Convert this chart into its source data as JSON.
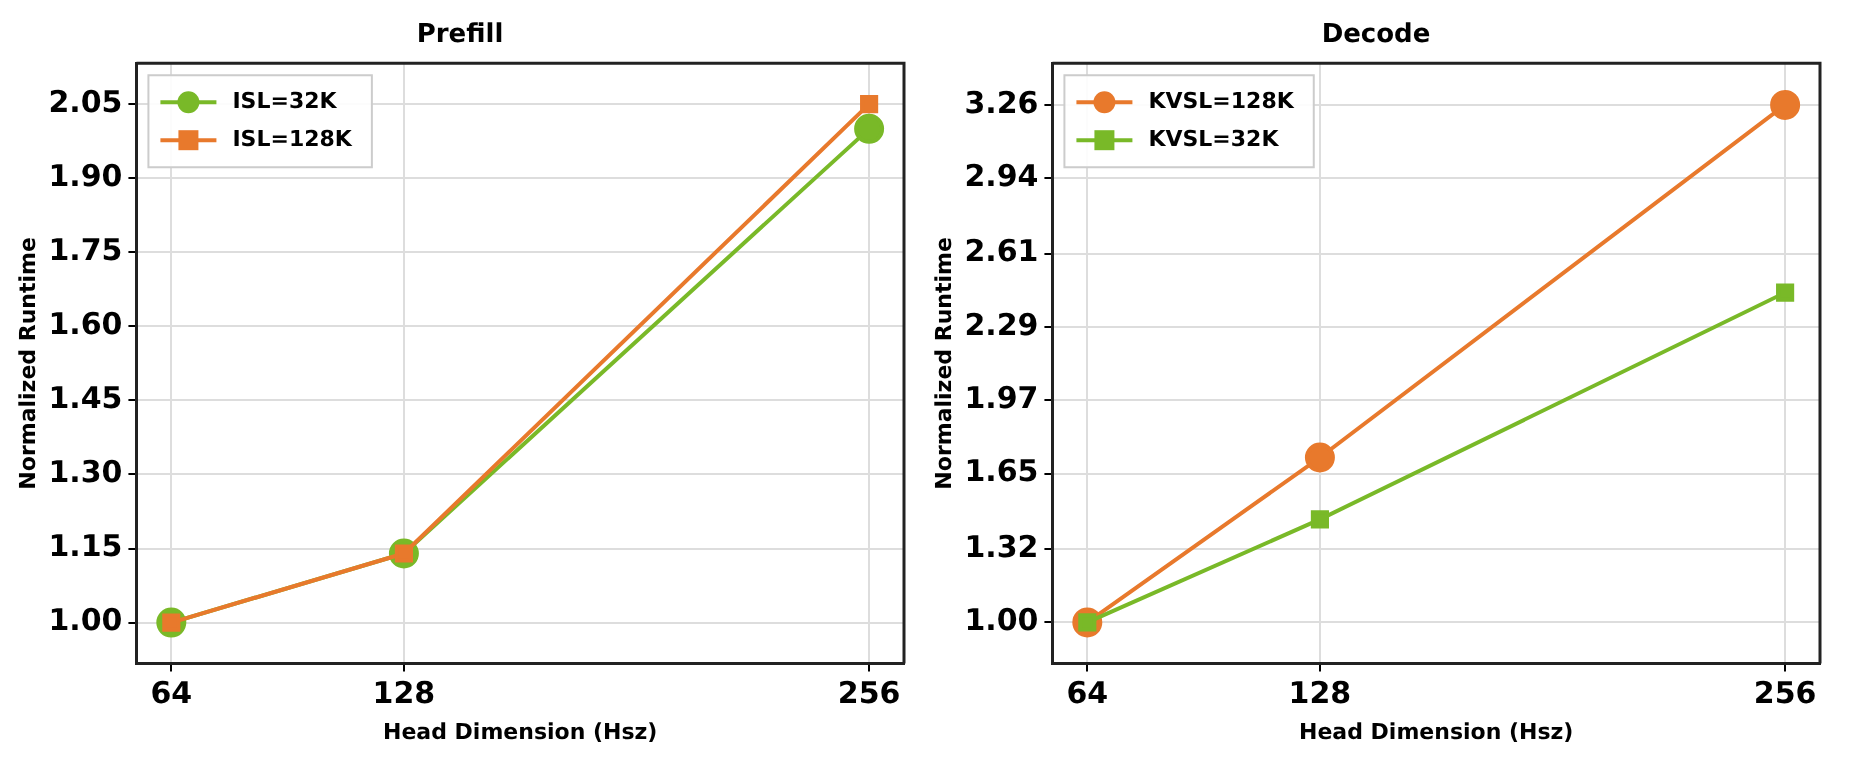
{
  "chart_data": [
    {
      "type": "line",
      "title": "Prefill",
      "xlabel": "Head Dimension (Hsz)",
      "ylabel": "Normalized Runtime",
      "x": [
        64,
        128,
        256
      ],
      "xlim": [
        54.4,
        265.6
      ],
      "xticks": [
        64,
        128,
        256
      ],
      "ylim": [
        0.917,
        2.133
      ],
      "yticks": [
        {
          "value": 1.0,
          "label": "1.00"
        },
        1.15,
        {
          "value": 1.3,
          "label": "1.30"
        },
        1.45,
        {
          "value": 1.6,
          "label": "1.60"
        },
        1.75,
        {
          "value": 1.9,
          "label": "1.90"
        },
        2.05
      ],
      "grid": true,
      "legend": "top left",
      "line_style": "solid",
      "series": [
        {
          "name": "ISL=32K",
          "color": "#79b928",
          "marker": "circle",
          "values": [
            1.0,
            1.14,
            2.0
          ]
        },
        {
          "name": "ISL=128K",
          "color": "#e8792c",
          "marker": "square",
          "values": [
            1.0,
            1.14,
            2.05
          ]
        }
      ]
    },
    {
      "type": "line",
      "title": "Decode",
      "xlabel": "Head Dimension (Hsz)",
      "ylabel": "Normalized Runtime",
      "x": [
        64,
        128,
        256
      ],
      "xlim": [
        54.4,
        265.6
      ],
      "xticks": [
        64,
        128,
        256
      ],
      "ylim": [
        0.82,
        3.442
      ],
      "yticks": [
        {
          "value": 1.0,
          "label": "1.00"
        },
        1.32,
        1.65,
        1.97,
        2.29,
        2.61,
        2.94,
        3.26
      ],
      "grid": true,
      "legend": "top left",
      "line_style": "solid",
      "series": [
        {
          "name": "KVSL=128K",
          "color": "#e8792c",
          "marker": "circle",
          "values": [
            1.0,
            1.72,
            3.26
          ]
        },
        {
          "name": "KVSL=32K",
          "color": "#79b928",
          "marker": "square",
          "values": [
            1.0,
            1.45,
            2.44
          ]
        }
      ]
    }
  ]
}
